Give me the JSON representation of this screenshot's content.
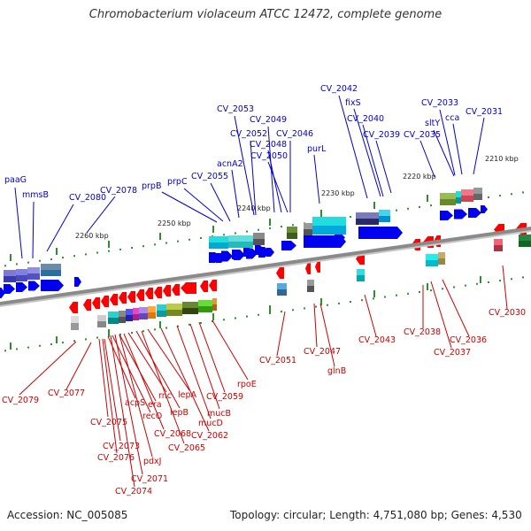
{
  "title": "Chromobacterium violaceum ATCC 12472, complete genome",
  "footer": {
    "accession_label": "Accession:",
    "accession": "NC_005085",
    "topology_label": "Topology:",
    "topology": "circular",
    "length_label": "Length:",
    "length": "4,751,080 bp",
    "genes_label": "Genes:",
    "genes": "4,530"
  },
  "colors": {
    "forward_label": "#0000cc",
    "forward_gene": "#0000ee",
    "reverse_label": "#cc0000",
    "reverse_gene": "#ff0000",
    "tick": "#2f8f2f",
    "backbone": "#8a8a8a"
  },
  "scale_ticks": [
    "2260 kbp",
    "2250 kbp",
    "2240 kbp",
    "2230 kbp",
    "2220 kbp",
    "2210 kbp"
  ],
  "forward_genes": [
    "paaG",
    "mmsB",
    "CV_2080",
    "CV_2078",
    "prpB",
    "prpC",
    "CV_2055",
    "acnA2",
    "CV_2053",
    "CV_2052",
    "CV_2049",
    "CV_2046",
    "CV_2048",
    "CV_2050",
    "purL",
    "CV_2042",
    "fixS",
    "CV_2040",
    "CV_2039",
    "CV_2035",
    "sltY",
    "CV_2033",
    "cca",
    "CV_2031"
  ],
  "reverse_genes": [
    "CV_2079",
    "CV_2077",
    "CV_2075",
    "acpS",
    "CV_2073",
    "CV_2076",
    "recO",
    "era",
    "rnc",
    "CV_2068",
    "lepB",
    "lepA",
    "CV_2071",
    "pdxJ",
    "CV_2074",
    "CV_2065",
    "CV_2062",
    "mucD",
    "mucB",
    "CV_2059",
    "rpoE",
    "CV_2051",
    "CV_2047",
    "glnB",
    "CV_2043",
    "CV_2038",
    "CV_2036",
    "CV_2037",
    "CV_2030"
  ]
}
